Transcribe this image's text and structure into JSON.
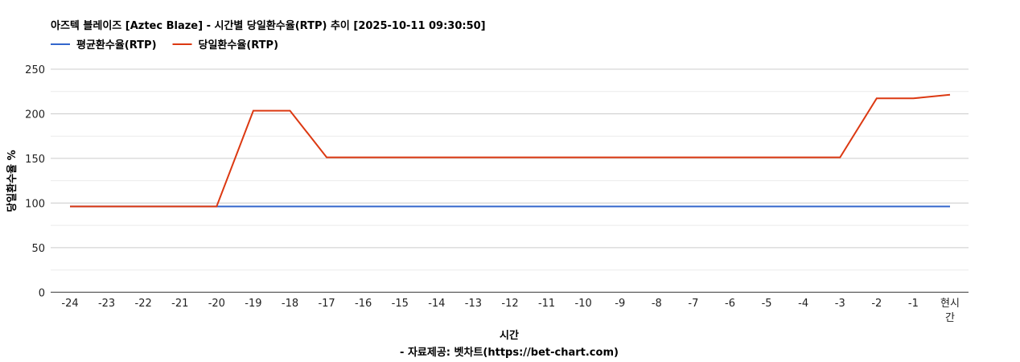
{
  "chart_data": {
    "type": "line",
    "title": "아즈텍 블레이즈 [Aztec Blaze] - 시간별 당일환수율(RTP) 추이 [2025-10-11 09:30:50]",
    "xlabel": "시간",
    "xlabel_sub": "- 자료제공: 벳차트(https://bet-chart.com)",
    "ylabel": "당일환수율 %",
    "categories": [
      "-24",
      "-23",
      "-22",
      "-21",
      "-20",
      "-19",
      "-18",
      "-17",
      "-16",
      "-15",
      "-14",
      "-13",
      "-12",
      "-11",
      "-10",
      "-9",
      "-8",
      "-7",
      "-6",
      "-5",
      "-4",
      "-3",
      "-2",
      "-1",
      "현시간"
    ],
    "ylim": [
      0,
      250
    ],
    "yticks": [
      0,
      50,
      100,
      150,
      200,
      250
    ],
    "grid": true,
    "legend_position": "top-left",
    "series": [
      {
        "name": "평균환수율(RTP)",
        "color": "#3366cc",
        "values": [
          96.2,
          96.2,
          96.2,
          96.2,
          96.2,
          96.2,
          96.2,
          96.2,
          96.2,
          96.2,
          96.2,
          96.2,
          96.2,
          96.2,
          96.2,
          96.2,
          96.2,
          96.2,
          96.2,
          96.2,
          96.2,
          96.2,
          96.2,
          96.2,
          96.2
        ]
      },
      {
        "name": "당일환수율(RTP)",
        "color": "#dc3912",
        "values": [
          96.2,
          96.2,
          96.2,
          96.2,
          96.2,
          203.5,
          203.5,
          151.2,
          151.2,
          151.2,
          151.2,
          151.2,
          151.2,
          151.2,
          151.2,
          151.2,
          151.2,
          151.2,
          151.2,
          151.2,
          151.2,
          151.2,
          217.3,
          217.3,
          221.4
        ]
      }
    ]
  }
}
